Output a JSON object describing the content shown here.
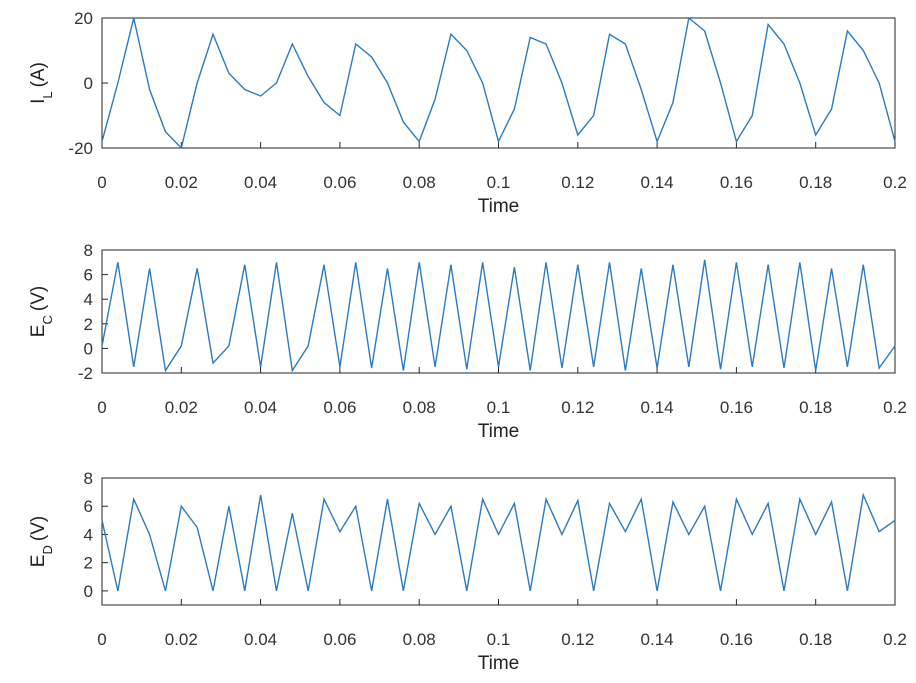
{
  "chart_data": [
    {
      "type": "line",
      "xlabel": "Time",
      "ylabel_parts": [
        "I",
        "L",
        "(A)"
      ],
      "xlim": [
        0,
        0.2
      ],
      "ylim": [
        -20,
        20
      ],
      "xticks": [
        0,
        0.02,
        0.04,
        0.06,
        0.08,
        0.1,
        0.12,
        0.14,
        0.16,
        0.18,
        0.2
      ],
      "yticks": [
        -20,
        0,
        20
      ],
      "x": [
        0,
        0.004,
        0.008,
        0.012,
        0.016,
        0.02,
        0.024,
        0.028,
        0.032,
        0.036,
        0.04,
        0.044,
        0.048,
        0.052,
        0.056,
        0.06,
        0.064,
        0.068,
        0.072,
        0.076,
        0.08,
        0.084,
        0.088,
        0.092,
        0.096,
        0.1,
        0.104,
        0.108,
        0.112,
        0.116,
        0.12,
        0.124,
        0.128,
        0.132,
        0.136,
        0.14,
        0.144,
        0.148,
        0.152,
        0.156,
        0.16,
        0.164,
        0.168,
        0.172,
        0.176,
        0.18,
        0.184,
        0.188,
        0.192,
        0.196,
        0.2
      ],
      "series": [
        {
          "color": "#2a7bbf",
          "values": [
            -18,
            0,
            20,
            -2,
            -15,
            -20,
            0,
            15,
            3,
            -2,
            -4,
            0,
            12,
            2,
            -6,
            -10,
            12,
            8,
            0,
            -12,
            -18,
            -5,
            15,
            10,
            0,
            -18,
            -8,
            14,
            12,
            0,
            -16,
            -10,
            15,
            12,
            -2,
            -18,
            -6,
            20,
            16,
            0,
            -18,
            -10,
            18,
            12,
            0,
            -16,
            -8,
            16,
            10,
            0,
            -18
          ]
        }
      ]
    },
    {
      "type": "line",
      "xlabel": "Time",
      "ylabel_parts": [
        "E",
        "C",
        "(V)"
      ],
      "xlim": [
        0,
        0.2
      ],
      "ylim": [
        -2,
        8
      ],
      "xticks": [
        0,
        0.02,
        0.04,
        0.06,
        0.08,
        0.1,
        0.12,
        0.14,
        0.16,
        0.18,
        0.2
      ],
      "yticks": [
        -2,
        0,
        2,
        4,
        6,
        8
      ],
      "x": [
        0,
        0.004,
        0.008,
        0.012,
        0.016,
        0.02,
        0.024,
        0.028,
        0.032,
        0.036,
        0.04,
        0.044,
        0.048,
        0.052,
        0.056,
        0.06,
        0.064,
        0.068,
        0.072,
        0.076,
        0.08,
        0.084,
        0.088,
        0.092,
        0.096,
        0.1,
        0.104,
        0.108,
        0.112,
        0.116,
        0.12,
        0.124,
        0.128,
        0.132,
        0.136,
        0.14,
        0.144,
        0.148,
        0.152,
        0.156,
        0.16,
        0.164,
        0.168,
        0.172,
        0.176,
        0.18,
        0.184,
        0.188,
        0.192,
        0.196,
        0.2
      ],
      "series": [
        {
          "color": "#2a7bbf",
          "values": [
            0.2,
            7,
            -1.5,
            6.5,
            -1.8,
            0.2,
            6.5,
            -1.2,
            0.2,
            6.8,
            -1.5,
            7,
            -1.8,
            0.2,
            6.8,
            -1.5,
            7,
            -1.6,
            6.5,
            -1.8,
            7,
            -1.5,
            6.8,
            -1.7,
            7,
            -1.5,
            6.6,
            -1.8,
            7,
            -1.6,
            6.8,
            -1.5,
            7,
            -1.8,
            6.5,
            -1.6,
            6.8,
            -1.5,
            7.2,
            -1.7,
            7,
            -1.5,
            6.8,
            -1.6,
            7,
            -1.8,
            6.5,
            -1.5,
            6.8,
            -1.6,
            0.2
          ]
        }
      ]
    },
    {
      "type": "line",
      "xlabel": "Time",
      "ylabel_parts": [
        "E",
        "D",
        "(V)"
      ],
      "xlim": [
        0,
        0.2
      ],
      "ylim": [
        -1,
        8
      ],
      "xticks": [
        0,
        0.02,
        0.04,
        0.06,
        0.08,
        0.1,
        0.12,
        0.14,
        0.16,
        0.18,
        0.2
      ],
      "yticks": [
        0,
        2,
        4,
        6,
        8
      ],
      "x": [
        0,
        0.004,
        0.008,
        0.012,
        0.016,
        0.02,
        0.024,
        0.028,
        0.032,
        0.036,
        0.04,
        0.044,
        0.048,
        0.052,
        0.056,
        0.06,
        0.064,
        0.068,
        0.072,
        0.076,
        0.08,
        0.084,
        0.088,
        0.092,
        0.096,
        0.1,
        0.104,
        0.108,
        0.112,
        0.116,
        0.12,
        0.124,
        0.128,
        0.132,
        0.136,
        0.14,
        0.144,
        0.148,
        0.152,
        0.156,
        0.16,
        0.164,
        0.168,
        0.172,
        0.176,
        0.18,
        0.184,
        0.188,
        0.192,
        0.196,
        0.2
      ],
      "series": [
        {
          "color": "#2a7bbf",
          "values": [
            5,
            0,
            6.5,
            4,
            0,
            6,
            4.5,
            0,
            6,
            0,
            6.8,
            0,
            5.5,
            0,
            6.5,
            4.2,
            6,
            0,
            6.5,
            0,
            6.2,
            4,
            6,
            0,
            6.5,
            4,
            6.2,
            0,
            6.5,
            4,
            6.4,
            0,
            6.2,
            4.2,
            6.5,
            0,
            6.3,
            4,
            6,
            0,
            6.5,
            4,
            6.2,
            0,
            6.5,
            4,
            6.3,
            0,
            6.8,
            4.2,
            5
          ]
        }
      ]
    }
  ]
}
